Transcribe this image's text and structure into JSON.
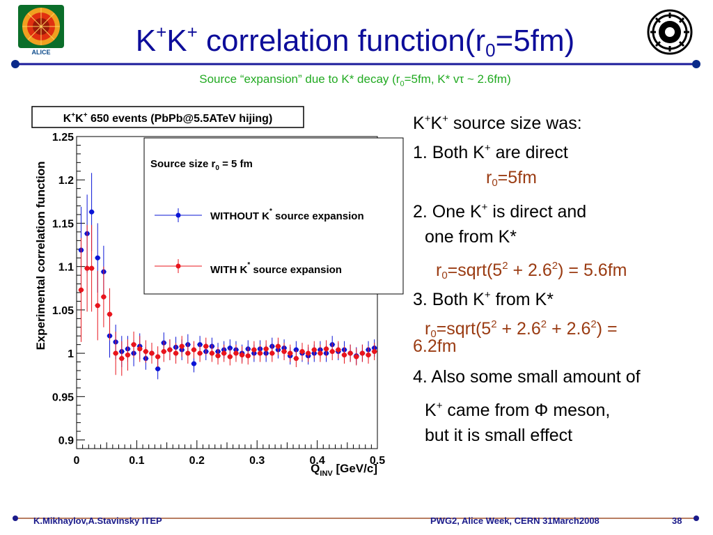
{
  "header": {
    "title_k1": "K",
    "title_plus1": "+",
    "title_k2": "K",
    "title_plus2": "+",
    "title_rest": " correlation function(r",
    "title_sub": "0",
    "title_end": "=5fm)",
    "subtitle_a": "Source “expansion” due to K* decay (r",
    "subtitle_sub": "0",
    "subtitle_b": "=5fm, K* vτ ~ 2.6fm)",
    "line_color": "#1a1a9a",
    "dot_color": "#0a2a8a",
    "logo_left": "alice-logo",
    "logo_right": "itep-logo",
    "logo_left_text": "ALICE"
  },
  "notes": {
    "l1_a": "K",
    "l1_b": "+",
    "l1_c": "K",
    "l1_d": "+",
    "l1_e": " source size was:",
    "l2_a": "1. Both K",
    "l2_b": "+",
    "l2_c": " are direct",
    "l3_a": "r",
    "l3_b": "0",
    "l3_c": "=5fm",
    "l4_a": "2. One K",
    "l4_b": "+",
    "l4_c": " is direct and",
    "l5": "one from K*",
    "l6_a": "r",
    "l6_b": "0",
    "l6_c": "=sqrt(5",
    "l6_d": "2",
    "l6_e": " + 2.6",
    "l6_f": "2",
    "l6_g": ") = 5.6fm",
    "l7_a": "3. Both K",
    "l7_b": "+",
    "l7_c": " from K*",
    "l8_a": "r",
    "l8_b": "0",
    "l8_c": "=sqrt(5",
    "l8_d": "2",
    "l8_e": " + 2.6",
    "l8_f": "2",
    "l8_g": " + 2.6",
    "l8_h": "2",
    "l8_i": ") =",
    "l9": "6.2fm",
    "l10": "4. Also some small amount of",
    "l11_a": "K",
    "l11_b": "+",
    "l11_c": " came from Φ meson,",
    "l12": "but it is small effect"
  },
  "footer": {
    "authors": "K.Mikhaylov,A.Stavinsky ITEP",
    "event": "PWG2, Alice Week, CERN 31March2008",
    "page": "38",
    "line_color": "#a0522d",
    "dot_color": "#1a1a8a"
  },
  "chart_data": {
    "type": "scatter",
    "title_k1": "K",
    "title_sup1": "+",
    "title_k2": "K",
    "title_sup2": "+",
    "title_rest": " 650 events (PbPb@5.5ATeV hijing)",
    "xlabel_main": "Q",
    "xlabel_sub": "INV",
    "xlabel_unit": " [GeV/c]",
    "ylabel": "Experimental correlation function",
    "xlim": [
      0,
      0.5
    ],
    "ylim": [
      0.89,
      1.25
    ],
    "xticks": [
      0,
      0.1,
      0.2,
      0.3,
      0.4,
      0.5
    ],
    "xtick_labels": [
      "0",
      "0.1",
      "0.2",
      "0.3",
      "0.4",
      "0.5"
    ],
    "yticks": [
      0.9,
      0.95,
      1.0,
      1.05,
      1.1,
      1.15,
      1.2,
      1.25
    ],
    "ytick_labels": [
      "0.9",
      "0.95",
      "1",
      "1.05",
      "1.1",
      "1.15",
      "1.2",
      "1.25"
    ],
    "legend": {
      "header_a": "Source size r",
      "header_sub": "0",
      "header_b": " = 5 fm",
      "entries": [
        {
          "a": "WITHOUT K",
          "sup": "*",
          "b": " source expansion"
        },
        {
          "a": "WITH K",
          "sup": "*",
          "b": " source expansion"
        }
      ]
    },
    "series": [
      {
        "color": "#0a14d6",
        "points": [
          [
            0.0075,
            1.119,
            0.05
          ],
          [
            0.0175,
            1.138,
            0.045
          ],
          [
            0.025,
            1.163,
            0.045
          ],
          [
            0.035,
            1.11,
            0.04
          ],
          [
            0.045,
            1.094,
            0.03
          ],
          [
            0.055,
            1.02,
            0.025
          ],
          [
            0.065,
            1.013,
            0.02
          ],
          [
            0.075,
            1.002,
            0.018
          ],
          [
            0.085,
            1.005,
            0.015
          ],
          [
            0.095,
            1.0,
            0.015
          ],
          [
            0.105,
            1.008,
            0.015
          ],
          [
            0.115,
            0.994,
            0.013
          ],
          [
            0.125,
            1.0,
            0.012
          ],
          [
            0.135,
            0.982,
            0.012
          ],
          [
            0.145,
            1.012,
            0.012
          ],
          [
            0.155,
            1.004,
            0.012
          ],
          [
            0.165,
            1.007,
            0.012
          ],
          [
            0.175,
            1.004,
            0.012
          ],
          [
            0.185,
            1.01,
            0.012
          ],
          [
            0.195,
            0.988,
            0.01
          ],
          [
            0.205,
            1.01,
            0.01
          ],
          [
            0.215,
            1.002,
            0.01
          ],
          [
            0.225,
            1.008,
            0.01
          ],
          [
            0.235,
            1.002,
            0.01
          ],
          [
            0.245,
            1.004,
            0.01
          ],
          [
            0.255,
            1.006,
            0.01
          ],
          [
            0.265,
            1.004,
            0.01
          ],
          [
            0.275,
            1.0,
            0.01
          ],
          [
            0.285,
            1.005,
            0.01
          ],
          [
            0.295,
            1.0,
            0.01
          ],
          [
            0.305,
            1.005,
            0.01
          ],
          [
            0.315,
            1.0,
            0.01
          ],
          [
            0.325,
            1.008,
            0.01
          ],
          [
            0.335,
            1.004,
            0.01
          ],
          [
            0.345,
            1.006,
            0.01
          ],
          [
            0.355,
            0.997,
            0.01
          ],
          [
            0.365,
            1.004,
            0.01
          ],
          [
            0.375,
            1.0,
            0.01
          ],
          [
            0.385,
            0.997,
            0.01
          ],
          [
            0.395,
            1.0,
            0.01
          ],
          [
            0.405,
            1.004,
            0.01
          ],
          [
            0.415,
            1.0,
            0.01
          ],
          [
            0.425,
            1.01,
            0.01
          ],
          [
            0.435,
            1.002,
            0.01
          ],
          [
            0.445,
            1.004,
            0.01
          ],
          [
            0.455,
            1.0,
            0.01
          ],
          [
            0.465,
            0.997,
            0.01
          ],
          [
            0.475,
            1.0,
            0.01
          ],
          [
            0.485,
            1.004,
            0.01
          ],
          [
            0.495,
            1.006,
            0.01
          ]
        ]
      },
      {
        "color": "#e8141c",
        "points": [
          [
            0.0075,
            1.073,
            0.06
          ],
          [
            0.0175,
            1.098,
            0.05
          ],
          [
            0.025,
            1.098,
            0.05
          ],
          [
            0.035,
            1.055,
            0.04
          ],
          [
            0.045,
            1.065,
            0.035
          ],
          [
            0.055,
            1.045,
            0.03
          ],
          [
            0.065,
            1.0,
            0.025
          ],
          [
            0.075,
            0.994,
            0.02
          ],
          [
            0.085,
            0.998,
            0.018
          ],
          [
            0.095,
            1.01,
            0.015
          ],
          [
            0.105,
            1.005,
            0.015
          ],
          [
            0.115,
            1.002,
            0.013
          ],
          [
            0.125,
            1.0,
            0.012
          ],
          [
            0.135,
            0.996,
            0.012
          ],
          [
            0.145,
            1.002,
            0.012
          ],
          [
            0.155,
            1.004,
            0.012
          ],
          [
            0.165,
            1.0,
            0.012
          ],
          [
            0.175,
            1.008,
            0.012
          ],
          [
            0.185,
            1.0,
            0.012
          ],
          [
            0.195,
            1.004,
            0.01
          ],
          [
            0.205,
            1.0,
            0.01
          ],
          [
            0.215,
            1.008,
            0.01
          ],
          [
            0.225,
            1.0,
            0.01
          ],
          [
            0.235,
            0.997,
            0.01
          ],
          [
            0.245,
            1.0,
            0.01
          ],
          [
            0.255,
            0.996,
            0.01
          ],
          [
            0.265,
            1.0,
            0.01
          ],
          [
            0.275,
            0.998,
            0.01
          ],
          [
            0.285,
            0.997,
            0.01
          ],
          [
            0.295,
            1.004,
            0.01
          ],
          [
            0.305,
            1.0,
            0.01
          ],
          [
            0.315,
            1.005,
            0.01
          ],
          [
            0.325,
            1.0,
            0.01
          ],
          [
            0.335,
            1.008,
            0.01
          ],
          [
            0.345,
            1.002,
            0.01
          ],
          [
            0.355,
            1.0,
            0.01
          ],
          [
            0.365,
            0.994,
            0.01
          ],
          [
            0.375,
            1.002,
            0.01
          ],
          [
            0.385,
            1.0,
            0.01
          ],
          [
            0.395,
            1.004,
            0.01
          ],
          [
            0.405,
            1.0,
            0.01
          ],
          [
            0.415,
            1.005,
            0.01
          ],
          [
            0.425,
            1.002,
            0.01
          ],
          [
            0.435,
            1.004,
            0.01
          ],
          [
            0.445,
            0.998,
            0.01
          ],
          [
            0.455,
            1.0,
            0.01
          ],
          [
            0.465,
            0.996,
            0.01
          ],
          [
            0.475,
            1.0,
            0.01
          ],
          [
            0.485,
            0.998,
            0.01
          ],
          [
            0.495,
            1.002,
            0.01
          ]
        ]
      }
    ]
  }
}
